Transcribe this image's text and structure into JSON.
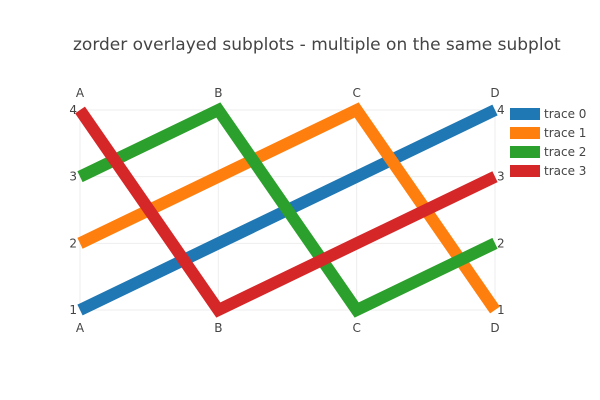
{
  "chart_data": {
    "type": "line",
    "title": "zorder overlayed subplots - multiple on the same subplot",
    "categories": [
      "A",
      "B",
      "C",
      "D"
    ],
    "ylim": [
      1,
      4
    ],
    "y_ticks_left": [
      "1",
      "2",
      "3",
      "4"
    ],
    "y_ticks_right": [
      "1",
      "2",
      "3",
      "4"
    ],
    "grid": true,
    "legend_position": "top-right",
    "series": [
      {
        "name": "trace 0",
        "values": [
          1,
          2,
          3,
          4
        ],
        "color": "#1f77b4"
      },
      {
        "name": "trace 1",
        "values": [
          2,
          3,
          4,
          1
        ],
        "color": "#ff7f0e"
      },
      {
        "name": "trace 2",
        "values": [
          3,
          4,
          1,
          2
        ],
        "color": "#2ca02c"
      },
      {
        "name": "trace 3",
        "values": [
          4,
          1,
          2,
          3
        ],
        "color": "#d62728"
      }
    ]
  }
}
